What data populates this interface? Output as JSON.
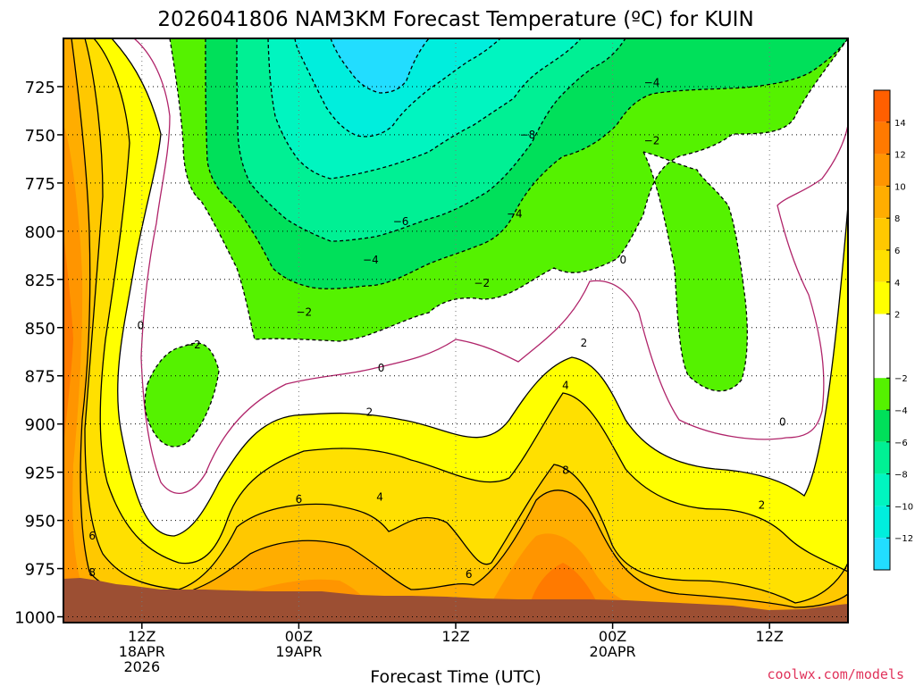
{
  "chart_data": {
    "type": "heatmap",
    "title": "2026041806 NAM3KM Forecast Temperature (ºC) for KUIN",
    "xlabel": "Forecast Time (UTC)",
    "ylabel": "",
    "x_ticks": [
      {
        "lines": [
          "12Z",
          "18APR",
          "2026"
        ]
      },
      {
        "lines": [
          "00Z",
          "19APR"
        ]
      },
      {
        "lines": [
          "12Z"
        ]
      },
      {
        "lines": [
          "00Z",
          "20APR"
        ]
      },
      {
        "lines": [
          "12Z"
        ]
      }
    ],
    "x_tick_hours": [
      6,
      18,
      30,
      42,
      54
    ],
    "x_range_hours": [
      0,
      60
    ],
    "y_ticks": [
      "725",
      "750",
      "775",
      "800",
      "825",
      "850",
      "875",
      "900",
      "925",
      "950",
      "975",
      "1000"
    ],
    "y_tick_values": [
      725,
      750,
      775,
      800,
      825,
      850,
      875,
      900,
      925,
      950,
      975,
      1000
    ],
    "y_range": [
      1003,
      700
    ],
    "grid": true,
    "colorbar": {
      "labels": [
        "14",
        "12",
        "10",
        "8",
        "6",
        "4",
        "2",
        "−2",
        "−4",
        "−6",
        "−8",
        "−10",
        "−12"
      ],
      "label_values": [
        14,
        12,
        10,
        8,
        6,
        4,
        2,
        -2,
        -4,
        -6,
        -8,
        -10,
        -12
      ],
      "bands": [
        {
          "min": 14,
          "max": 16,
          "color": "#ff5f00"
        },
        {
          "min": 12,
          "max": 14,
          "color": "#ff7a00"
        },
        {
          "min": 10,
          "max": 12,
          "color": "#ff9500"
        },
        {
          "min": 8,
          "max": 10,
          "color": "#ffad00"
        },
        {
          "min": 6,
          "max": 8,
          "color": "#ffc800"
        },
        {
          "min": 4,
          "max": 6,
          "color": "#ffe000"
        },
        {
          "min": 2,
          "max": 4,
          "color": "#ffff00"
        },
        {
          "min": -2,
          "max": 2,
          "color": "#ffffff"
        },
        {
          "min": -4,
          "max": -2,
          "color": "#55f200"
        },
        {
          "min": -6,
          "max": -4,
          "color": "#00e05a"
        },
        {
          "min": -8,
          "max": -6,
          "color": "#00f094"
        },
        {
          "min": -10,
          "max": -8,
          "color": "#00f5c0"
        },
        {
          "min": -12,
          "max": -10,
          "color": "#00eedd"
        },
        {
          "min": -14,
          "max": -12,
          "color": "#22ddff"
        }
      ]
    },
    "ground_color": "#9c4f33",
    "zero_contour_color": "#b0246a",
    "contour_labels": [
      {
        "text": "6",
        "hour": 2.2,
        "p": 958
      },
      {
        "text": "8",
        "hour": 2.2,
        "p": 977
      },
      {
        "text": "0",
        "hour": 5.9,
        "p": 849
      },
      {
        "text": "−2",
        "hour": 9.9,
        "p": 859
      },
      {
        "text": "2",
        "hour": 23.4,
        "p": 894
      },
      {
        "text": "0",
        "hour": 24.3,
        "p": 871
      },
      {
        "text": "6",
        "hour": 18.0,
        "p": 939
      },
      {
        "text": "4",
        "hour": 24.2,
        "p": 938
      },
      {
        "text": "−2",
        "hour": 18.4,
        "p": 842
      },
      {
        "text": "−4",
        "hour": 23.5,
        "p": 815
      },
      {
        "text": "−6",
        "hour": 25.8,
        "p": 795
      },
      {
        "text": "−8",
        "hour": 35.5,
        "p": 750
      },
      {
        "text": "−4",
        "hour": 34.5,
        "p": 791
      },
      {
        "text": "−2",
        "hour": 32.0,
        "p": 827
      },
      {
        "text": "0",
        "hour": 42.8,
        "p": 815
      },
      {
        "text": "2",
        "hour": 39.8,
        "p": 858
      },
      {
        "text": "4",
        "hour": 38.4,
        "p": 880
      },
      {
        "text": "8",
        "hour": 38.4,
        "p": 924
      },
      {
        "text": "6",
        "hour": 31.0,
        "p": 978
      },
      {
        "text": "−4",
        "hour": 45.0,
        "p": 723
      },
      {
        "text": "−2",
        "hour": 45.0,
        "p": 753
      },
      {
        "text": "0",
        "hour": 55.0,
        "p": 899
      },
      {
        "text": "2",
        "hour": 53.4,
        "p": 942
      }
    ]
  },
  "credit": "coolwx.com/models"
}
